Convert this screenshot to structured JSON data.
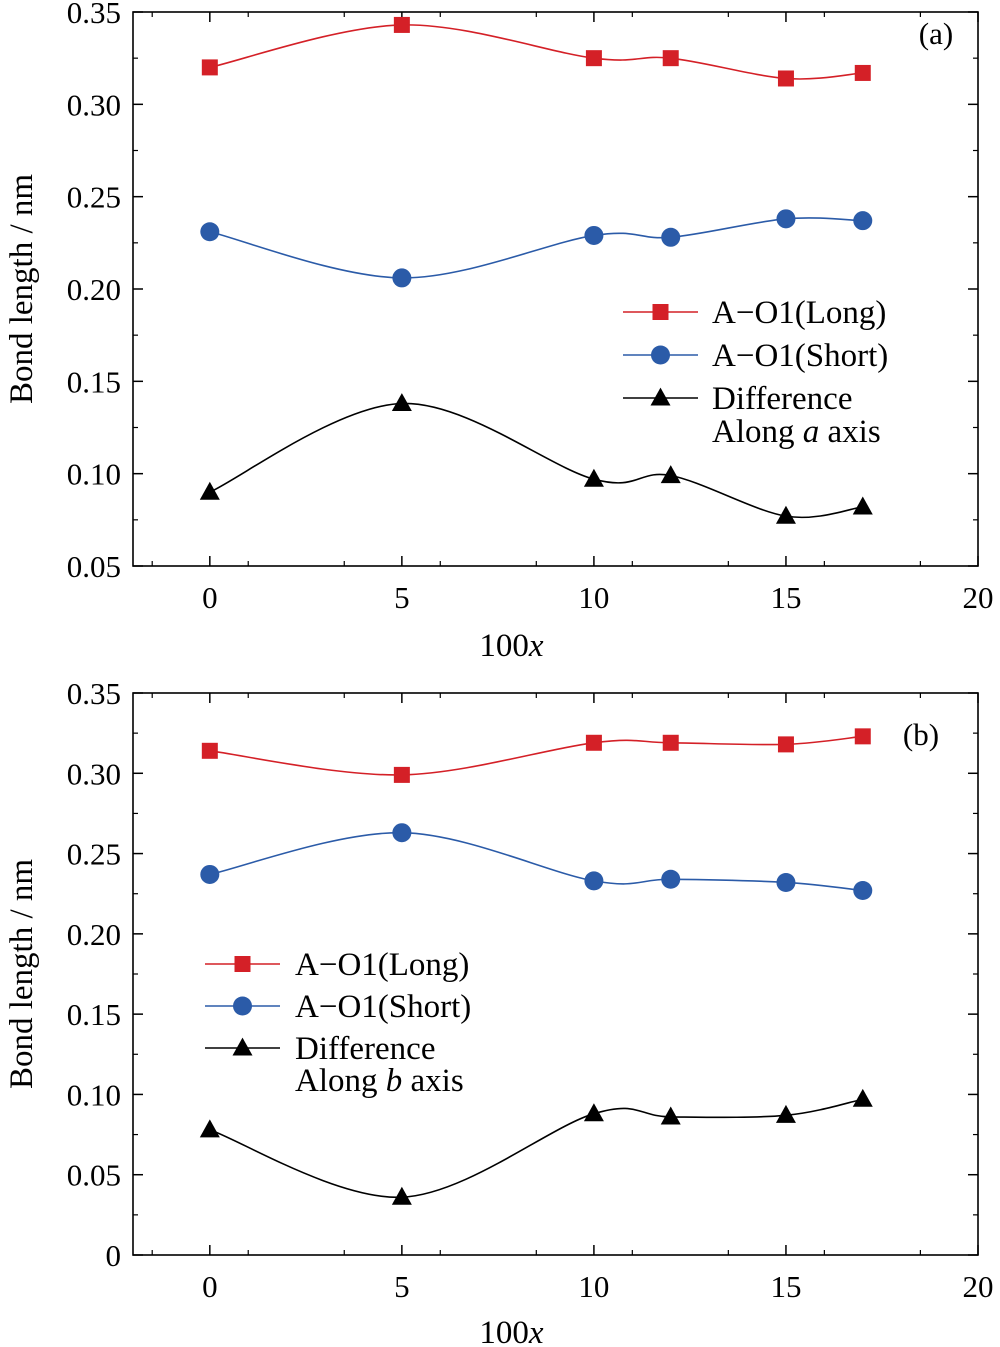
{
  "chart_data": [
    {
      "type": "line",
      "panel_label": "(a)",
      "xlabel": "100",
      "xlabel_var": "x",
      "ylabel": "Bond length / nm",
      "xlim": [
        -2,
        20
      ],
      "ylim": [
        0.05,
        0.35
      ],
      "xticks": [
        "0",
        "5",
        "10",
        "15",
        "20"
      ],
      "yticks": [
        "0.05",
        "0.10",
        "0.15",
        "0.20",
        "0.25",
        "0.30",
        "0.35"
      ],
      "x": [
        0,
        5,
        10,
        12,
        15,
        17
      ],
      "series": [
        {
          "name": "A−O1(Long)",
          "color": "#d42027",
          "marker": "square",
          "values": [
            0.32,
            0.343,
            0.325,
            0.325,
            0.314,
            0.317
          ]
        },
        {
          "name": "A−O1(Short)",
          "color": "#2b5ba8",
          "marker": "circle",
          "values": [
            0.231,
            0.206,
            0.229,
            0.228,
            0.238,
            0.237
          ]
        },
        {
          "name": "Difference",
          "color": "#000000",
          "marker": "triangle",
          "values": [
            0.09,
            0.138,
            0.097,
            0.099,
            0.077,
            0.082
          ]
        }
      ],
      "legend_note_prefix": "Along ",
      "legend_note_var": "a",
      "legend_note_suffix": " axis",
      "legend_position": "right",
      "grid": false
    },
    {
      "type": "line",
      "panel_label": "(b)",
      "xlabel": "100",
      "xlabel_var": "x",
      "ylabel": "Bond length / nm",
      "xlim": [
        -2,
        20
      ],
      "ylim": [
        0,
        0.35
      ],
      "xticks": [
        "0",
        "5",
        "10",
        "15",
        "20"
      ],
      "yticks": [
        "0",
        "0.05",
        "0.10",
        "0.15",
        "0.20",
        "0.25",
        "0.30",
        "0.35"
      ],
      "x": [
        0,
        5,
        10,
        12,
        15,
        17
      ],
      "series": [
        {
          "name": "A−O1(Long)",
          "color": "#d42027",
          "marker": "square",
          "values": [
            0.314,
            0.299,
            0.319,
            0.319,
            0.318,
            0.323
          ]
        },
        {
          "name": "A−O1(Short)",
          "color": "#2b5ba8",
          "marker": "circle",
          "values": [
            0.237,
            0.263,
            0.233,
            0.234,
            0.232,
            0.227
          ]
        },
        {
          "name": "Difference",
          "color": "#000000",
          "marker": "triangle",
          "values": [
            0.078,
            0.036,
            0.088,
            0.086,
            0.087,
            0.097
          ]
        }
      ],
      "legend_note_prefix": "Along ",
      "legend_note_var": "b",
      "legend_note_suffix": " axis",
      "legend_position": "left",
      "grid": false
    }
  ]
}
